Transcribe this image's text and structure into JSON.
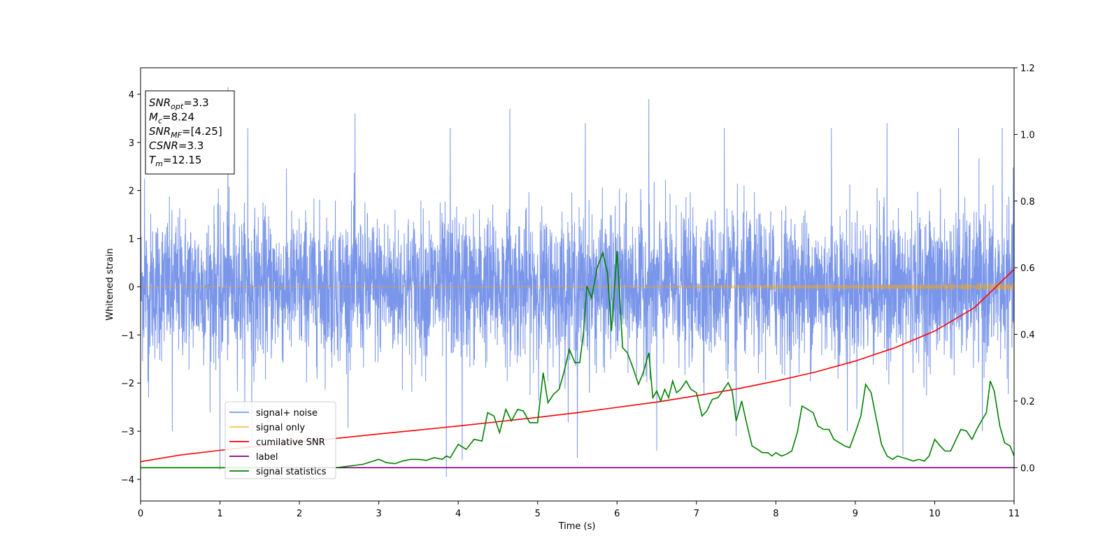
{
  "chart_data": {
    "type": "line",
    "xlabel": "Time (s)",
    "ylabel": "Whitened strain",
    "xlim": [
      0,
      11
    ],
    "ylim": [
      -4.45,
      4.55
    ],
    "y2lim": [
      -0.1,
      1.2
    ],
    "x_ticks": [
      "0",
      "1",
      "2",
      "3",
      "4",
      "5",
      "6",
      "7",
      "8",
      "9",
      "10",
      "11"
    ],
    "y_ticks": [
      "4",
      "3",
      "2",
      "1",
      "0",
      "−1",
      "−2",
      "−3",
      "−4"
    ],
    "y2_ticks": [
      "1.2",
      "1.0",
      "0.8",
      "0.6",
      "0.4",
      "0.2",
      "0.0"
    ],
    "annotation": [
      {
        "base": "SNR",
        "sub": "opt",
        "value": "=3.3"
      },
      {
        "base": "M",
        "sub": "c",
        "value": "=8.24"
      },
      {
        "base": "SNR",
        "sub": "MF",
        "value": "=[4.25]"
      },
      {
        "base": "CSNR",
        "sub": "",
        "value": "=3.3"
      },
      {
        "base": "T",
        "sub": "m",
        "value": "=12.15"
      }
    ],
    "legend": {
      "placement": "lower-left",
      "entries": [
        {
          "label": "signal+ noise",
          "color": "#4169e1"
        },
        {
          "label": "signal only",
          "color": "#ffa500"
        },
        {
          "label": "cumilative SNR",
          "color": "#ff0000"
        },
        {
          "label": "label",
          "color": "#800080"
        },
        {
          "label": "signal statistics",
          "color": "#008000"
        }
      ]
    },
    "series": [
      {
        "name": "signal+ noise",
        "axis": "left",
        "color": "#4169e1",
        "opacity": 0.7,
        "kind": "noise",
        "std": 0.75,
        "peaks_high": [
          [
            0.05,
            2.25
          ],
          [
            1.1,
            4.15
          ],
          [
            1.35,
            3.3
          ],
          [
            2.7,
            3.6
          ],
          [
            3.9,
            3.3
          ],
          [
            4.65,
            3.7
          ],
          [
            5.6,
            3.4
          ],
          [
            6.4,
            3.9
          ],
          [
            7.35,
            3.3
          ],
          [
            8.7,
            3.3
          ],
          [
            9.4,
            3.4
          ],
          [
            10.3,
            3.3
          ],
          [
            10.85,
            3.3
          ]
        ],
        "peaks_low": [
          [
            0.1,
            -2.3
          ],
          [
            0.4,
            -3.0
          ],
          [
            1.0,
            -3.8
          ],
          [
            1.4,
            -3.2
          ],
          [
            3.85,
            -3.95
          ],
          [
            4.05,
            -3.6
          ],
          [
            5.5,
            -3.55
          ],
          [
            6.5,
            -3.4
          ],
          [
            7.5,
            -3.1
          ],
          [
            8.9,
            -3.0
          ],
          [
            9.6,
            -3.5
          ],
          [
            10.6,
            -3.0
          ]
        ]
      },
      {
        "name": "signal only",
        "axis": "left",
        "color": "#ffa500",
        "opacity": 0.5,
        "kind": "chirp",
        "amp_start": 0.01,
        "amp_end": 0.08
      },
      {
        "name": "cumilative SNR",
        "axis": "right",
        "color": "#ff0000",
        "x": [
          0,
          0.5,
          1,
          1.5,
          2,
          2.5,
          3,
          3.5,
          4,
          4.5,
          5,
          5.5,
          6,
          6.5,
          7,
          7.5,
          8,
          8.5,
          9,
          9.5,
          10,
          10.5,
          11
        ],
        "y": [
          0.018,
          0.038,
          0.052,
          0.065,
          0.077,
          0.089,
          0.101,
          0.113,
          0.125,
          0.138,
          0.151,
          0.165,
          0.181,
          0.197,
          0.216,
          0.236,
          0.26,
          0.287,
          0.32,
          0.36,
          0.41,
          0.48,
          0.595
        ]
      },
      {
        "name": "label",
        "axis": "right",
        "color": "#800080",
        "x": [
          0,
          11
        ],
        "y": [
          0.0,
          0.0
        ]
      },
      {
        "name": "signal statistics",
        "axis": "right",
        "color": "#008000",
        "x": [
          0,
          1,
          2,
          2.5,
          2.8,
          3.0,
          3.1,
          3.2,
          3.3,
          3.4,
          3.5,
          3.6,
          3.7,
          3.8,
          3.85,
          3.9,
          4.0,
          4.1,
          4.2,
          4.3,
          4.37,
          4.45,
          4.52,
          4.6,
          4.67,
          4.75,
          4.82,
          4.9,
          5.0,
          5.07,
          5.13,
          5.2,
          5.27,
          5.33,
          5.4,
          5.47,
          5.53,
          5.58,
          5.62,
          5.68,
          5.75,
          5.82,
          5.88,
          5.93,
          6.0,
          6.07,
          6.13,
          6.2,
          6.27,
          6.33,
          6.4,
          6.45,
          6.5,
          6.55,
          6.6,
          6.65,
          6.7,
          6.75,
          6.8,
          6.87,
          6.93,
          7.0,
          7.07,
          7.13,
          7.2,
          7.27,
          7.33,
          7.4,
          7.45,
          7.5,
          7.57,
          7.63,
          7.7,
          7.77,
          7.83,
          7.9,
          7.95,
          8.0,
          8.07,
          8.13,
          8.2,
          8.27,
          8.33,
          8.4,
          8.47,
          8.53,
          8.6,
          8.67,
          8.73,
          8.8,
          8.87,
          8.93,
          9.0,
          9.07,
          9.13,
          9.2,
          9.27,
          9.33,
          9.4,
          9.47,
          9.53,
          9.6,
          9.67,
          9.73,
          9.8,
          9.87,
          9.93,
          10.0,
          10.07,
          10.13,
          10.2,
          10.27,
          10.33,
          10.4,
          10.47,
          10.53,
          10.6,
          10.65,
          10.7,
          10.75,
          10.82,
          10.88,
          10.95,
          11.0
        ],
        "y": [
          0.0,
          0.0,
          0.0,
          0.001,
          0.01,
          0.025,
          0.015,
          0.012,
          0.02,
          0.025,
          0.025,
          0.022,
          0.03,
          0.025,
          0.035,
          0.03,
          0.07,
          0.055,
          0.085,
          0.08,
          0.165,
          0.155,
          0.105,
          0.175,
          0.14,
          0.175,
          0.17,
          0.135,
          0.135,
          0.285,
          0.195,
          0.22,
          0.235,
          0.285,
          0.355,
          0.315,
          0.315,
          0.41,
          0.545,
          0.51,
          0.6,
          0.645,
          0.585,
          0.41,
          0.65,
          0.36,
          0.345,
          0.3,
          0.25,
          0.285,
          0.345,
          0.21,
          0.23,
          0.2,
          0.235,
          0.21,
          0.26,
          0.225,
          0.235,
          0.26,
          0.235,
          0.225,
          0.155,
          0.17,
          0.205,
          0.21,
          0.23,
          0.255,
          0.23,
          0.14,
          0.2,
          0.135,
          0.065,
          0.055,
          0.045,
          0.045,
          0.035,
          0.045,
          0.035,
          0.04,
          0.05,
          0.105,
          0.185,
          0.175,
          0.165,
          0.125,
          0.115,
          0.115,
          0.085,
          0.075,
          0.065,
          0.06,
          0.105,
          0.155,
          0.25,
          0.225,
          0.14,
          0.07,
          0.035,
          0.025,
          0.035,
          0.03,
          0.025,
          0.02,
          0.025,
          0.02,
          0.035,
          0.085,
          0.065,
          0.05,
          0.05,
          0.085,
          0.115,
          0.11,
          0.085,
          0.115,
          0.145,
          0.165,
          0.26,
          0.23,
          0.125,
          0.075,
          0.065,
          0.035
        ]
      }
    ]
  }
}
